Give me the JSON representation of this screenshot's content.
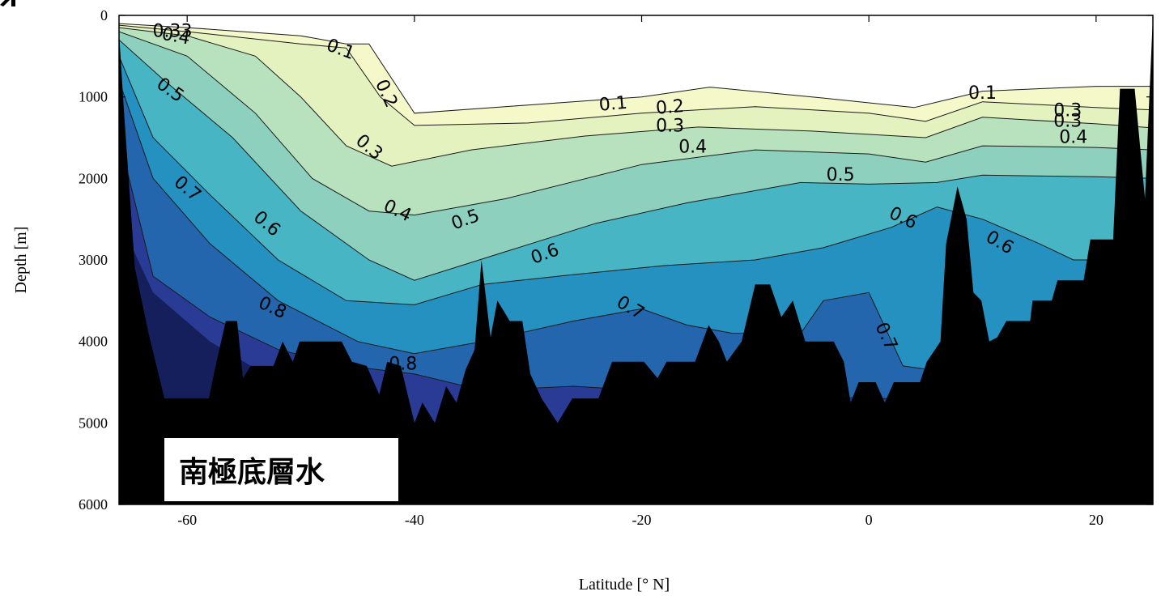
{
  "chart_data": {
    "type": "heatmap",
    "subtype": "filled contour section",
    "title": "",
    "xlabel": "Latitude [° N]",
    "ylabel": "Depth [m]",
    "xlim": [
      -66,
      25
    ],
    "ylim": [
      6000,
      0
    ],
    "y_inverted": true,
    "xticks": [
      -60,
      -40,
      -20,
      0,
      20
    ],
    "xtick_labels": [
      "-60",
      "-40",
      "-20",
      "0",
      "20"
    ],
    "yticks": [
      0,
      1000,
      2000,
      3000,
      4000,
      5000,
      6000
    ],
    "ytick_labels": [
      "0",
      "1000",
      "2000",
      "3000",
      "4000",
      "5000",
      "6000"
    ],
    "grid": false,
    "levels": [
      0.1,
      0.2,
      0.3,
      0.4,
      0.5,
      0.6,
      0.7,
      0.8
    ],
    "colors": {
      "lt0.1": "#ffffff",
      "0.1-0.2": "#f5f9c9",
      "0.2-0.3": "#e3f2bf",
      "0.3-0.4": "#b8e2bd",
      "0.4-0.5": "#8dd0be",
      "0.5-0.6": "#47b5c4",
      "0.6-0.7": "#2491c0",
      "0.7-0.8": "#2366ae",
      "0.8-0.9": "#2a3b96",
      "gt0.9": "#151f5c",
      "bathymetry": "#000000"
    },
    "contour_labels": [
      {
        "text": "0.1",
        "lat": -46.5,
        "depth": 420,
        "rot": 20
      },
      {
        "text": "0.1",
        "lat": -22.5,
        "depth": 1090,
        "rot": -5
      },
      {
        "text": "0.1",
        "lat": 10,
        "depth": 960,
        "rot": 0
      },
      {
        "text": "0.2",
        "lat": -42.5,
        "depth": 960,
        "rot": 65
      },
      {
        "text": "0.2",
        "lat": -17.5,
        "depth": 1130,
        "rot": -5
      },
      {
        "text": "0.3",
        "lat": -44,
        "depth": 1620,
        "rot": 40
      },
      {
        "text": "0.3",
        "lat": -17.5,
        "depth": 1360,
        "rot": 0
      },
      {
        "text": "0.3",
        "lat": 17.5,
        "depth": 1170,
        "rot": 0
      },
      {
        "text": "0.3",
        "lat": 17.5,
        "depth": 1300,
        "rot": 0
      },
      {
        "text": "0.33",
        "lat": -61.3,
        "depth": 200,
        "rot": 0
      },
      {
        "text": "0.4",
        "lat": -61,
        "depth": 260,
        "rot": 10
      },
      {
        "text": "0.4",
        "lat": -41.5,
        "depth": 2400,
        "rot": 25
      },
      {
        "text": "0.4",
        "lat": -15.5,
        "depth": 1620,
        "rot": 0
      },
      {
        "text": "0.4",
        "lat": 18,
        "depth": 1500,
        "rot": 0
      },
      {
        "text": "0.5",
        "lat": -61.5,
        "depth": 920,
        "rot": 35
      },
      {
        "text": "0.5",
        "lat": -2.5,
        "depth": 1960,
        "rot": 0
      },
      {
        "text": "0.5",
        "lat": -35.5,
        "depth": 2510,
        "rot": -20
      },
      {
        "text": "0.6",
        "lat": -53,
        "depth": 2560,
        "rot": 40
      },
      {
        "text": "0.6",
        "lat": -28.5,
        "depth": 2930,
        "rot": -20
      },
      {
        "text": "0.6",
        "lat": 3,
        "depth": 2490,
        "rot": 25
      },
      {
        "text": "0.6",
        "lat": 11.5,
        "depth": 2790,
        "rot": 30
      },
      {
        "text": "0.7",
        "lat": -60,
        "depth": 2130,
        "rot": 40
      },
      {
        "text": "0.7",
        "lat": -21,
        "depth": 3590,
        "rot": 30
      },
      {
        "text": "0.7",
        "lat": 1.5,
        "depth": 3940,
        "rot": 65
      },
      {
        "text": "0.8",
        "lat": -52.5,
        "depth": 3590,
        "rot": 25
      },
      {
        "text": "0.8",
        "lat": -41,
        "depth": 4280,
        "rot": 0
      }
    ],
    "bathymetry_profile": [
      [
        -66,
        200
      ],
      [
        -65.6,
        1100
      ],
      [
        -64.6,
        3100
      ],
      [
        -63.4,
        3900
      ],
      [
        -62,
        4700
      ],
      [
        -58.1,
        4700
      ],
      [
        -57.5,
        4300
      ],
      [
        -56.6,
        3750
      ],
      [
        -55.6,
        3750
      ],
      [
        -55.1,
        4450
      ],
      [
        -54.4,
        4300
      ],
      [
        -52.4,
        4300
      ],
      [
        -51.6,
        4000
      ],
      [
        -50.7,
        4250
      ],
      [
        -50.1,
        4000
      ],
      [
        -46.4,
        4000
      ],
      [
        -45.5,
        4250
      ],
      [
        -44.2,
        4300
      ],
      [
        -43.1,
        4650
      ],
      [
        -42.4,
        4250
      ],
      [
        -41.2,
        4300
      ],
      [
        -40,
        5000
      ],
      [
        -39.3,
        4750
      ],
      [
        -38.2,
        5000
      ],
      [
        -37.2,
        4550
      ],
      [
        -36.3,
        4750
      ],
      [
        -35.5,
        4350
      ],
      [
        -34.7,
        4100
      ],
      [
        -34.1,
        3000
      ],
      [
        -33.3,
        3950
      ],
      [
        -32.7,
        3500
      ],
      [
        -31.6,
        3750
      ],
      [
        -30.5,
        3750
      ],
      [
        -29.8,
        4400
      ],
      [
        -28.8,
        4700
      ],
      [
        -27.4,
        5000
      ],
      [
        -26.1,
        4700
      ],
      [
        -23.8,
        4700
      ],
      [
        -22.6,
        4250
      ],
      [
        -19.8,
        4250
      ],
      [
        -18.6,
        4450
      ],
      [
        -17.8,
        4250
      ],
      [
        -15.3,
        4250
      ],
      [
        -14.1,
        3800
      ],
      [
        -13.2,
        4000
      ],
      [
        -12.5,
        4250
      ],
      [
        -11.2,
        4000
      ],
      [
        -10,
        3300
      ],
      [
        -8.7,
        3300
      ],
      [
        -7.7,
        3700
      ],
      [
        -6.7,
        3500
      ],
      [
        -5.6,
        4000
      ],
      [
        -3.1,
        4000
      ],
      [
        -2.2,
        4250
      ],
      [
        -1.6,
        4750
      ],
      [
        -0.9,
        4500
      ],
      [
        0.6,
        4500
      ],
      [
        1.4,
        4750
      ],
      [
        2.2,
        4500
      ],
      [
        4.5,
        4500
      ],
      [
        5.1,
        4250
      ],
      [
        6.3,
        4000
      ],
      [
        6.8,
        2800
      ],
      [
        7.8,
        2100
      ],
      [
        8.6,
        2500
      ],
      [
        9.2,
        3400
      ],
      [
        9.9,
        3500
      ],
      [
        10.6,
        4000
      ],
      [
        11.3,
        3950
      ],
      [
        12.1,
        3750
      ],
      [
        14.2,
        3750
      ],
      [
        14.4,
        3500
      ],
      [
        16.1,
        3500
      ],
      [
        16.6,
        3250
      ],
      [
        18.9,
        3250
      ],
      [
        19.5,
        2750
      ],
      [
        21.5,
        2750
      ],
      [
        22.1,
        900
      ],
      [
        23.4,
        900
      ],
      [
        24.3,
        2250
      ],
      [
        25,
        0
      ]
    ]
  },
  "annotation": {
    "text": "南極底層水"
  }
}
